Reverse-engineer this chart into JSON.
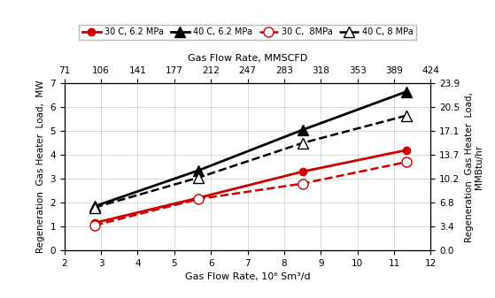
{
  "series": [
    {
      "label": "30 C, 6.2 MPa",
      "color": "#cc0000",
      "linestyle": "-",
      "marker": "o",
      "markerfacecolor": "#cc0000",
      "markeredgecolor": "#cc0000",
      "markersize": 6,
      "linewidth": 2.0,
      "x": [
        2.83,
        5.66,
        8.5,
        11.33
      ],
      "y": [
        1.15,
        2.2,
        3.3,
        4.2
      ]
    },
    {
      "label": "40 C, 6.2 MPa",
      "color": "#000000",
      "linestyle": "-",
      "marker": "^",
      "markerfacecolor": "#000000",
      "markeredgecolor": "#000000",
      "markersize": 8,
      "linewidth": 2.0,
      "x": [
        2.83,
        5.66,
        8.5,
        11.33
      ],
      "y": [
        1.85,
        3.35,
        5.05,
        6.65
      ]
    },
    {
      "label": "30 C,  8MPa",
      "color": "#cc0000",
      "linestyle": "--",
      "marker": "o",
      "markerfacecolor": "white",
      "markeredgecolor": "#cc0000",
      "markersize": 8,
      "linewidth": 1.8,
      "x": [
        2.83,
        5.66,
        8.5,
        11.33
      ],
      "y": [
        1.05,
        2.15,
        2.8,
        3.7
      ]
    },
    {
      "label": "40 C, 8 MPa",
      "color": "#000000",
      "linestyle": "--",
      "marker": "^",
      "markerfacecolor": "white",
      "markeredgecolor": "#000000",
      "markersize": 8,
      "linewidth": 1.8,
      "x": [
        2.83,
        5.66,
        8.5,
        11.33
      ],
      "y": [
        1.8,
        3.05,
        4.5,
        5.65
      ]
    }
  ],
  "xlim": [
    2,
    12
  ],
  "ylim": [
    0,
    7
  ],
  "xticks_bottom": [
    2,
    3,
    4,
    5,
    6,
    7,
    8,
    9,
    10,
    11,
    12
  ],
  "xticks_top": [
    71,
    106,
    141,
    177,
    212,
    247,
    283,
    318,
    353,
    389,
    424
  ],
  "yticks_left": [
    0,
    1,
    2,
    3,
    4,
    5,
    6,
    7
  ],
  "yticks_right_labels": [
    "0.0",
    "3.4",
    "6.8",
    "10.2",
    "13.7",
    "17.1",
    "20.5",
    "23.9"
  ],
  "xlabel_bottom": "Gas Flow Rate, 10⁶ Sm³/d",
  "xlabel_top": "Gas Flow Rate, MMSCFD",
  "ylabel_left": "Regeneration  Gas Heater  Load,  MW",
  "ylabel_right": "Regeneration  Gas Heater  Load,\nMMBtu/hr",
  "background_color": "#ffffff",
  "grid_color": "#cccccc"
}
